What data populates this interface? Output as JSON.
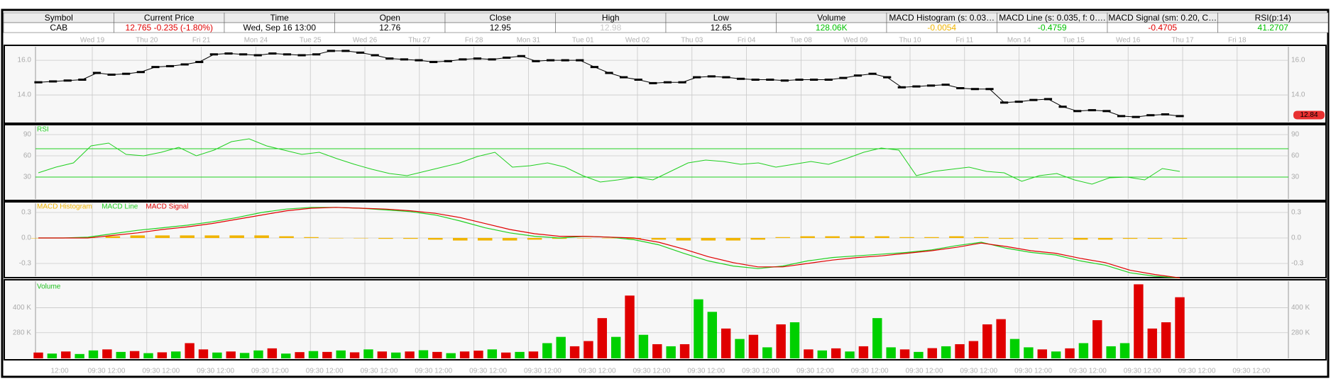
{
  "header": {
    "columns": [
      "Symbol",
      "Current Price",
      "Time",
      "Open",
      "Close",
      "High",
      "Low",
      "Volume",
      "MACD Histogram (s: 0.03…",
      "MACD Line (s: 0.035, f: 0….",
      "MACD Signal (sm: 0.20, C…",
      "RSI(p:14)"
    ],
    "values": [
      "CAB",
      "12.765 -0.235 (-1.80%)",
      "Wed, Sep 16  13:00",
      "12.76",
      "12.95",
      "12.98",
      "12.65",
      "128.06K",
      "-0.0054",
      "-0.4759",
      "-0.4705",
      "41.2707"
    ],
    "value_colors": [
      "#000000",
      "#e00000",
      "#000000",
      "#000000",
      "#000000",
      "#c8c8c8",
      "#000000",
      "#00c000",
      "#f0b400",
      "#00c000",
      "#e00000",
      "#00c000"
    ]
  },
  "date_labels": [
    "Wed 19",
    "Thu 20",
    "Fri 21",
    "Mon 24",
    "Tue 25",
    "Wed 26",
    "Thu 27",
    "Fri 28",
    "Mon 31",
    "Tue 01",
    "Wed 02",
    "Thu 03",
    "Fri 04",
    "Tue 08",
    "Wed 09",
    "Thu 10",
    "Fri 11",
    "Mon 14",
    "Tue 15",
    "Wed 16",
    "Thu 17",
    "Fri 18"
  ],
  "time_labels": [
    "12:00",
    "09:30 12:00",
    "09:30 12:00",
    "09:30 12:00",
    "09:30 12:00",
    "09:30 12:00",
    "09:30 12:00",
    "09:30 12:00",
    "09:30 12:00",
    "09:30 12:00",
    "09:30 12:00",
    "09:30 12:00",
    "09:30 12:00",
    "09:30 12:00",
    "09:30 12:00",
    "09:30 12:00",
    "09:30 12:00",
    "09:30 12:00",
    "09:30 12:00",
    "09:30 12:00",
    "09:30 12:00",
    "09:30 12:00",
    "09:30 12:00"
  ],
  "chart_data": [
    {
      "type": "candlestick",
      "color": "#000000",
      "ylim": [
        12.45,
        16.78
      ],
      "yticks": [
        {
          "value": 16,
          "label": "16.0"
        },
        {
          "value": 14,
          "label": "14.0"
        }
      ],
      "last_price": 12.84,
      "last_price_color": "#e83030",
      "values": [
        14.73,
        14.78,
        14.83,
        14.88,
        15.27,
        15.17,
        15.22,
        15.32,
        15.61,
        15.66,
        15.76,
        15.9,
        16.34,
        16.39,
        16.34,
        16.29,
        16.39,
        16.34,
        16.29,
        16.34,
        16.54,
        16.54,
        16.44,
        16.29,
        16.1,
        16.05,
        16.0,
        15.9,
        15.95,
        16.05,
        16.1,
        16.05,
        16.15,
        16.24,
        15.95,
        16.0,
        16.0,
        16.0,
        15.61,
        15.27,
        15.02,
        14.88,
        14.68,
        14.73,
        14.73,
        15.02,
        15.07,
        15.02,
        14.93,
        14.88,
        14.88,
        14.83,
        14.88,
        14.88,
        14.88,
        14.98,
        15.12,
        15.22,
        15.02,
        14.44,
        14.49,
        14.54,
        14.59,
        14.39,
        14.34,
        14.34,
        13.56,
        13.61,
        13.71,
        13.76,
        13.32,
        13.07,
        13.12,
        13.07,
        12.78,
        12.73,
        12.83,
        12.88,
        12.78
      ]
    },
    {
      "type": "line",
      "label": "RSI",
      "color": "#20d020",
      "ylim": [
        -1,
        102
      ],
      "yticks": [
        90,
        60,
        30
      ],
      "levels": [
        70,
        30
      ],
      "values": [
        36,
        44,
        50,
        74,
        78,
        62,
        60,
        65,
        72,
        60,
        68,
        80,
        84,
        74,
        68,
        62,
        65,
        56,
        48,
        41,
        35,
        32,
        38,
        44,
        50,
        59,
        65,
        44,
        46,
        50,
        44,
        32,
        23,
        26,
        30,
        26,
        38,
        50,
        54,
        52,
        48,
        50,
        44,
        48,
        52,
        48,
        56,
        65,
        71,
        68,
        32,
        38,
        41,
        44,
        38,
        36,
        24,
        32,
        35,
        26,
        20,
        29,
        30,
        26,
        42,
        38
      ]
    },
    {
      "type": "line",
      "ylim": [
        -0.45,
        0.408
      ],
      "yticks": [
        0.3,
        {
          "value": 0,
          "label": "0.0"
        },
        -0.3
      ],
      "series": [
        {
          "name": "MACD Histogram",
          "type": "bar",
          "color": "#f0b400",
          "values": [
            0,
            0,
            0.01,
            0.02,
            0.03,
            0.03,
            0.03,
            0.03,
            0.03,
            0.03,
            0.02,
            0.01,
            0,
            0,
            -0.01,
            -0.01,
            -0.02,
            -0.03,
            -0.03,
            -0.03,
            -0.02,
            -0.01,
            0,
            0,
            -0.01,
            -0.02,
            -0.03,
            -0.03,
            -0.03,
            -0.02,
            0.01,
            0.02,
            0.02,
            0.02,
            0.02,
            0.01,
            0.01,
            0.02,
            0.01,
            -0.01,
            -0.01,
            -0.01,
            -0.02,
            -0.02,
            -0.01,
            -0.01,
            -0.01
          ]
        },
        {
          "name": "MACD Line",
          "color": "#20d020",
          "values": [
            0,
            0,
            0.01,
            0.05,
            0.09,
            0.12,
            0.15,
            0.19,
            0.24,
            0.3,
            0.34,
            0.36,
            0.36,
            0.35,
            0.33,
            0.31,
            0.27,
            0.2,
            0.12,
            0.06,
            0.02,
            0,
            0.02,
            0.01,
            -0.02,
            -0.08,
            -0.18,
            -0.27,
            -0.33,
            -0.36,
            -0.33,
            -0.27,
            -0.23,
            -0.21,
            -0.19,
            -0.17,
            -0.14,
            -0.09,
            -0.05,
            -0.12,
            -0.17,
            -0.2,
            -0.27,
            -0.32,
            -0.41,
            -0.45,
            -0.47
          ]
        },
        {
          "name": "MACD Signal",
          "color": "#e00000",
          "values": [
            0,
            0,
            0,
            0.03,
            0.06,
            0.1,
            0.13,
            0.17,
            0.22,
            0.27,
            0.32,
            0.35,
            0.36,
            0.35,
            0.34,
            0.32,
            0.29,
            0.24,
            0.17,
            0.1,
            0.05,
            0.02,
            0.02,
            0.01,
            0,
            -0.05,
            -0.13,
            -0.22,
            -0.29,
            -0.34,
            -0.34,
            -0.3,
            -0.26,
            -0.23,
            -0.21,
            -0.18,
            -0.15,
            -0.11,
            -0.06,
            -0.1,
            -0.15,
            -0.18,
            -0.24,
            -0.29,
            -0.38,
            -0.43,
            -0.47
          ]
        }
      ]
    },
    {
      "type": "bar",
      "label": "Volume",
      "ylim": [
        157000,
        527000
      ],
      "yticks": [
        {
          "value": 400000,
          "label": "400 K"
        },
        {
          "value": 280000,
          "label": "280 K"
        }
      ],
      "values": [
        185000,
        180000,
        190000,
        178000,
        195000,
        200000,
        188000,
        192000,
        182000,
        186000,
        190000,
        230000,
        200000,
        185000,
        190000,
        183000,
        195000,
        205000,
        180000,
        187000,
        192000,
        188000,
        195000,
        186000,
        200000,
        190000,
        185000,
        190000,
        196000,
        188000,
        182000,
        190000,
        194000,
        200000,
        185000,
        188000,
        190000,
        230000,
        260000,
        215000,
        240000,
        350000,
        260000,
        458000,
        270000,
        225000,
        215000,
        225000,
        440000,
        380000,
        300000,
        250000,
        270000,
        210000,
        320000,
        330000,
        200000,
        195000,
        205000,
        190000,
        215000,
        350000,
        210000,
        200000,
        188000,
        206000,
        215000,
        225000,
        240000,
        320000,
        345000,
        250000,
        210000,
        200000,
        190000,
        205000,
        230000,
        340000,
        215000,
        230000,
        512000,
        300000,
        330000,
        450000
      ],
      "colors": [
        "#e00000",
        "#00d000",
        "#e00000",
        "#00d000",
        "#00d000",
        "#e00000",
        "#00d000",
        "#e00000",
        "#00d000",
        "#e00000",
        "#00d000",
        "#e00000",
        "#e00000",
        "#00d000",
        "#e00000",
        "#00d000",
        "#00d000",
        "#e00000",
        "#00d000",
        "#e00000",
        "#00d000",
        "#e00000",
        "#00d000",
        "#e00000",
        "#00d000",
        "#e00000",
        "#00d000",
        "#e00000",
        "#00d000",
        "#e00000",
        "#00d000",
        "#e00000",
        "#e00000",
        "#00d000",
        "#e00000",
        "#00d000",
        "#e00000",
        "#00d000",
        "#00d000",
        "#e00000",
        "#e00000",
        "#e00000",
        "#00d000",
        "#e00000",
        "#00d000",
        "#e00000",
        "#00d000",
        "#e00000",
        "#00d000",
        "#00d000",
        "#e00000",
        "#00d000",
        "#e00000",
        "#00d000",
        "#e00000",
        "#00d000",
        "#e00000",
        "#00d000",
        "#e00000",
        "#00d000",
        "#e00000",
        "#00d000",
        "#00d000",
        "#e00000",
        "#00d000",
        "#e00000",
        "#00d000",
        "#e00000",
        "#e00000",
        "#e00000",
        "#e00000",
        "#00d000",
        "#00d000",
        "#e00000",
        "#00d000",
        "#e00000",
        "#00d000",
        "#e00000",
        "#00d000",
        "#00d000",
        "#e00000",
        "#e00000",
        "#e00000",
        "#e00000"
      ]
    }
  ]
}
